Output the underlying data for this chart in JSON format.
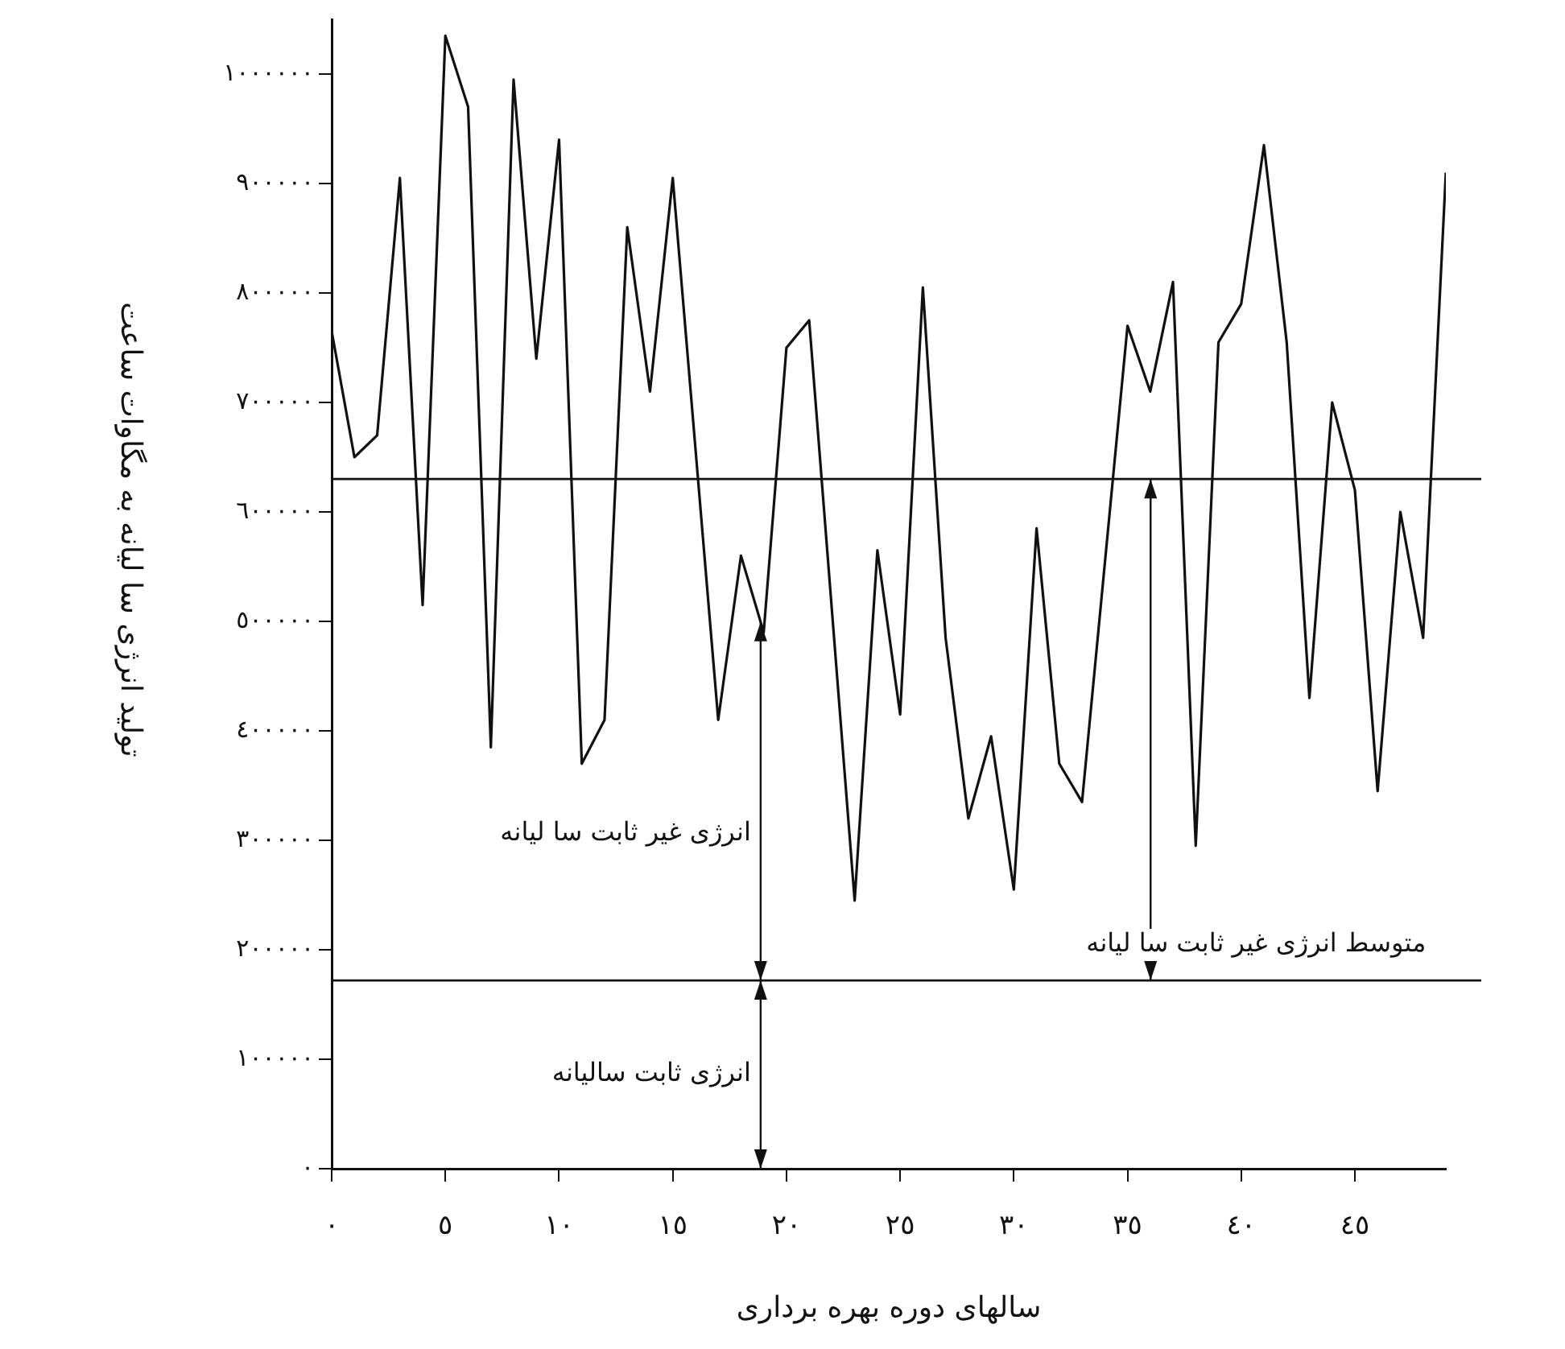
{
  "chart_data": {
    "type": "line",
    "xlabel": "سالهای دوره بهره برداری",
    "ylabel": "تولید انرژی سا لیانه به مگاوات ساعت",
    "x": [
      0,
      1,
      2,
      3,
      4,
      5,
      6,
      7,
      8,
      9,
      10,
      11,
      12,
      13,
      14,
      15,
      17,
      18,
      19,
      20,
      21,
      23,
      24,
      25,
      26,
      27,
      28,
      29,
      30,
      31,
      32,
      33,
      35,
      36,
      37,
      38,
      39,
      40,
      41,
      42,
      43,
      44,
      45,
      46,
      47,
      48,
      49
    ],
    "series": [
      {
        "color": "#111111",
        "values": [
          765000,
          650000,
          670000,
          905000,
          515000,
          1035000,
          970000,
          385000,
          995000,
          740000,
          940000,
          370000,
          410000,
          860000,
          710000,
          905000,
          410000,
          560000,
          490000,
          750000,
          775000,
          245000,
          565000,
          415000,
          805000,
          485000,
          320000,
          395000,
          255000,
          585000,
          370000,
          335000,
          770000,
          710000,
          810000,
          295000,
          755000,
          790000,
          935000,
          755000,
          430000,
          700000,
          620000,
          345000,
          600000,
          485000,
          910000
        ]
      }
    ],
    "xlim": [
      0,
      49
    ],
    "xticks": [
      {
        "value": 0,
        "label": "٠"
      },
      {
        "value": 5,
        "label": "٥"
      },
      {
        "value": 10,
        "label": "١٠"
      },
      {
        "value": 15,
        "label": "١٥"
      },
      {
        "value": 20,
        "label": "٢٠"
      },
      {
        "value": 25,
        "label": "٢٥"
      },
      {
        "value": 30,
        "label": "٣٠"
      },
      {
        "value": 35,
        "label": "٣٥"
      },
      {
        "value": 40,
        "label": "٤٠"
      },
      {
        "value": 45,
        "label": "٤٥"
      }
    ],
    "ylim": [
      0,
      1050000
    ],
    "yticks": [
      {
        "value": 0,
        "label": "٠"
      },
      {
        "value": 100000,
        "label": "١٠٠٠٠٠"
      },
      {
        "value": 200000,
        "label": "٢٠٠٠٠٠"
      },
      {
        "value": 300000,
        "label": "٣٠٠٠٠٠"
      },
      {
        "value": 400000,
        "label": "٤٠٠٠٠٠"
      },
      {
        "value": 500000,
        "label": "٥٠٠٠٠٠"
      },
      {
        "value": 600000,
        "label": "٦٠٠٠٠٠"
      },
      {
        "value": 700000,
        "label": "٧٠٠٠٠٠"
      },
      {
        "value": 800000,
        "label": "٨٠٠٠٠٠"
      },
      {
        "value": 900000,
        "label": "٩٠٠٠٠٠"
      },
      {
        "value": 1000000,
        "label": "١٠٠٠٠٠٠"
      }
    ],
    "ref_lines": [
      {
        "axis": "y",
        "value": 630000,
        "color": "#111111",
        "label": "متوسط انرژی غیر ثابت سا لیانه"
      },
      {
        "axis": "y",
        "value": 172000,
        "color": "#111111",
        "label": "انرژی ثابت سالیانه"
      }
    ],
    "annotations": [
      "انرژی غیر ثابت سا لیانه"
    ],
    "grid": false,
    "legend": false,
    "marker": "none",
    "line_style": "solid"
  }
}
